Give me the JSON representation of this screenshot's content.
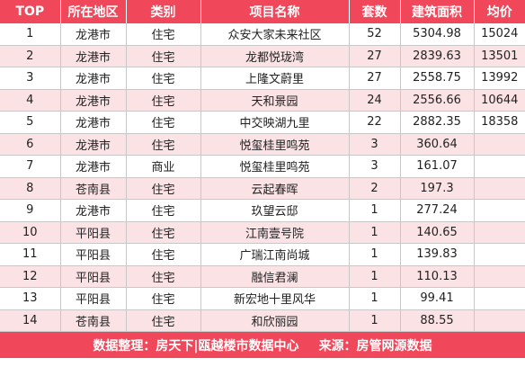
{
  "table": {
    "headers": [
      "TOP",
      "所在地区",
      "类别",
      "项目名称",
      "套数",
      "建筑面积",
      "均价"
    ],
    "rows": [
      [
        "1",
        "龙港市",
        "住宅",
        "众安大家未来社区",
        "52",
        "5304.98",
        "15024"
      ],
      [
        "2",
        "龙港市",
        "住宅",
        "龙都悦珑湾",
        "27",
        "2839.63",
        "13501"
      ],
      [
        "3",
        "龙港市",
        "住宅",
        "上隆文蔚里",
        "27",
        "2558.75",
        "13992"
      ],
      [
        "4",
        "龙港市",
        "住宅",
        "天和景园",
        "24",
        "2556.66",
        "10644"
      ],
      [
        "5",
        "龙港市",
        "住宅",
        "中交映湖九里",
        "22",
        "2882.35",
        "18358"
      ],
      [
        "6",
        "龙港市",
        "住宅",
        "悦玺桂里鸣苑",
        "3",
        "360.64",
        ""
      ],
      [
        "7",
        "龙港市",
        "商业",
        "悦玺桂里鸣苑",
        "3",
        "161.07",
        ""
      ],
      [
        "8",
        "苍南县",
        "住宅",
        "云起春晖",
        "2",
        "197.3",
        ""
      ],
      [
        "9",
        "龙港市",
        "住宅",
        "玖望云邸",
        "1",
        "277.24",
        ""
      ],
      [
        "10",
        "平阳县",
        "住宅",
        "江南壹号院",
        "1",
        "140.65",
        ""
      ],
      [
        "11",
        "平阳县",
        "住宅",
        "广瑞江南尚城",
        "1",
        "139.83",
        ""
      ],
      [
        "12",
        "平阳县",
        "住宅",
        "融信君澜",
        "1",
        "110.13",
        ""
      ],
      [
        "13",
        "平阳县",
        "住宅",
        "新宏地十里风华",
        "1",
        "99.41",
        ""
      ],
      [
        "14",
        "苍南县",
        "住宅",
        "和欣丽园",
        "1",
        "88.55",
        ""
      ]
    ]
  },
  "footer": {
    "data_compiled": "数据整理：房天下|瓯越楼市数据中心",
    "source": "来源：房管网源数据"
  },
  "colors": {
    "header_bg": "#f0485a",
    "alt_row_bg": "#fbe3e5"
  }
}
